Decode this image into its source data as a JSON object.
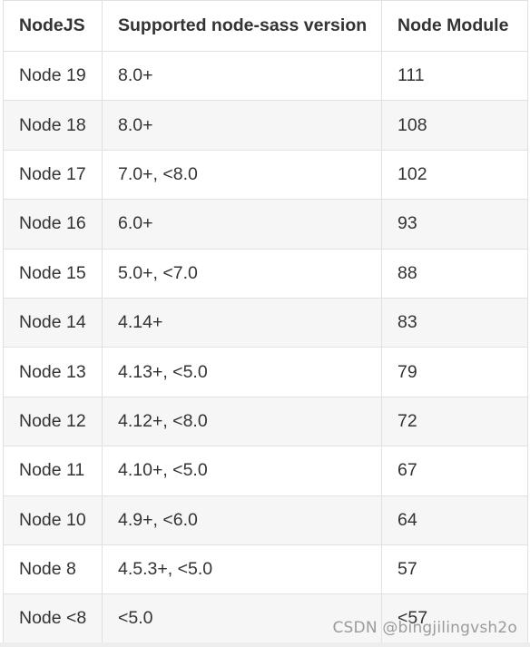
{
  "table": {
    "headers": [
      "NodeJS",
      "Supported node-sass version",
      "Node Module"
    ],
    "rows": [
      [
        "Node 19",
        "8.0+",
        "111"
      ],
      [
        "Node 18",
        "8.0+",
        "108"
      ],
      [
        "Node 17",
        "7.0+, <8.0",
        "102"
      ],
      [
        "Node 16",
        "6.0+",
        "93"
      ],
      [
        "Node 15",
        "5.0+, <7.0",
        "88"
      ],
      [
        "Node 14",
        "4.14+",
        "83"
      ],
      [
        "Node 13",
        "4.13+, <5.0",
        "79"
      ],
      [
        "Node 12",
        "4.12+, <8.0",
        "72"
      ],
      [
        "Node 11",
        "4.10+, <5.0",
        "67"
      ],
      [
        "Node 10",
        "4.9+, <6.0",
        "64"
      ],
      [
        "Node 8",
        "4.5.3+, <5.0",
        "57"
      ],
      [
        "Node <8",
        "<5.0",
        "<57"
      ]
    ]
  },
  "watermark": "CSDN @bingjilingvsh2o"
}
